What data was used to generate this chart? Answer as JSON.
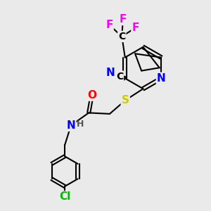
{
  "bg_color": "#eaeaea",
  "atom_colors": {
    "C": "#000000",
    "N": "#0000ff",
    "O": "#ff0000",
    "S": "#cccc00",
    "F": "#ff00ff",
    "Cl": "#00bb00",
    "H": "#555555"
  },
  "bond_color": "#000000",
  "bond_width": 1.5,
  "dbo": 0.07,
  "font_size": 10
}
